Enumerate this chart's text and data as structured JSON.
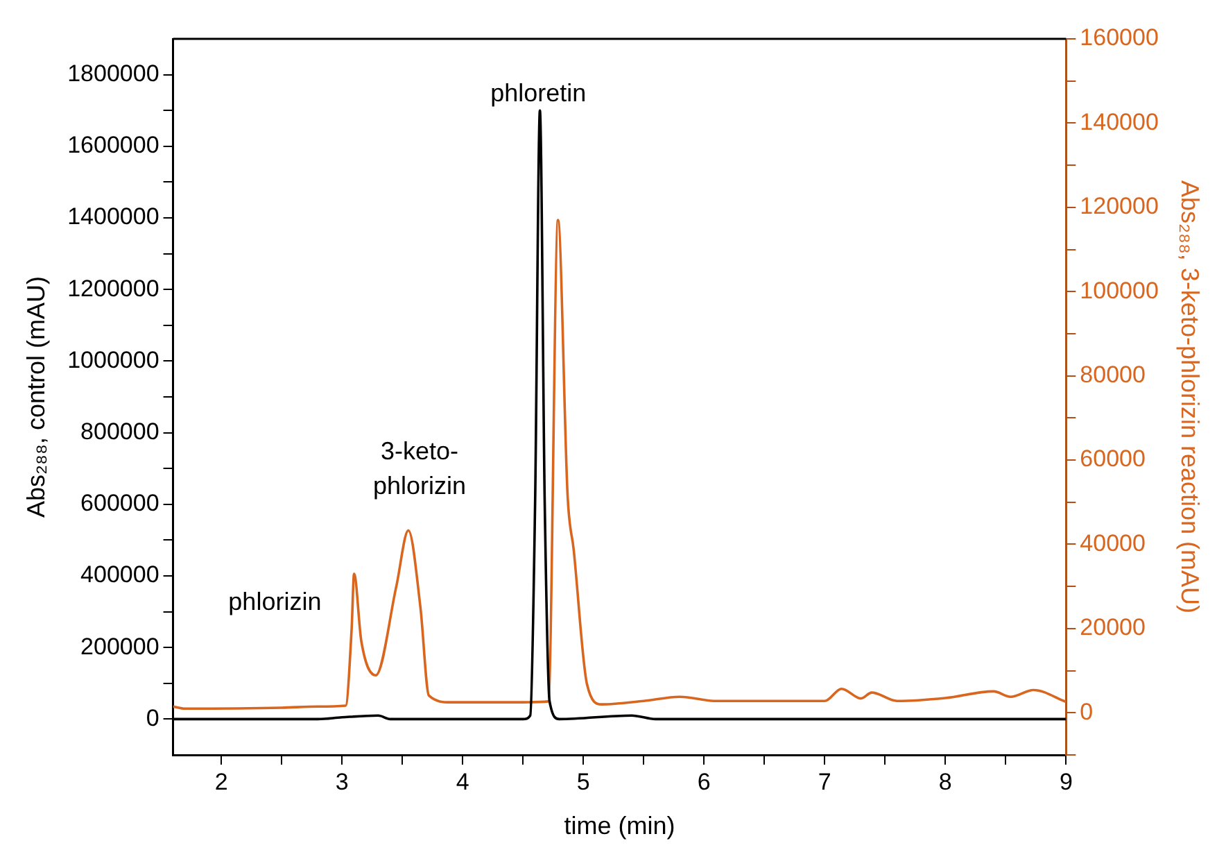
{
  "chart_data": {
    "type": "line",
    "xlabel": "time (min)",
    "ylabel": "Abs₂₈₈, control (mAU)",
    "y2label": "Abs₂₈₈, 3-keto-phlorizin reaction (mAU)",
    "xlim": [
      1.6,
      9
    ],
    "xticks": [
      2,
      {
        "value": 2.5,
        "label": null
      },
      3,
      {
        "value": 3.5,
        "label": null
      },
      4,
      {
        "value": 4.5,
        "label": null
      },
      5,
      {
        "value": 5.5,
        "label": null
      },
      6,
      {
        "value": 6.5,
        "label": null
      },
      7,
      {
        "value": 7.5,
        "label": null
      },
      8,
      {
        "value": 8.5,
        "label": null
      },
      9
    ],
    "ylim": [
      -100000,
      1900000
    ],
    "yticks": [
      0,
      {
        "value": 100000,
        "label": null
      },
      200000,
      {
        "value": 300000,
        "label": null
      },
      400000,
      {
        "value": 500000,
        "label": null
      },
      600000,
      {
        "value": 700000,
        "label": null
      },
      800000,
      {
        "value": 900000,
        "label": null
      },
      1000000,
      {
        "value": 1100000,
        "label": null
      },
      1200000,
      {
        "value": 1300000,
        "label": null
      },
      1400000,
      {
        "value": 1500000,
        "label": null
      },
      1600000,
      {
        "value": 1700000,
        "label": null
      },
      1800000
    ],
    "y2lim": [
      -10000,
      160000
    ],
    "y2ticks": [
      {
        "value": -10000,
        "label": null
      },
      0,
      {
        "value": 10000,
        "label": null
      },
      20000,
      {
        "value": 30000,
        "label": null
      },
      40000,
      {
        "value": 50000,
        "label": null
      },
      60000,
      {
        "value": 70000,
        "label": null
      },
      80000,
      {
        "value": 90000,
        "label": null
      },
      100000,
      {
        "value": 110000,
        "label": null
      },
      120000,
      {
        "value": 130000,
        "label": null
      },
      140000,
      {
        "value": 150000,
        "label": null
      },
      160000
    ],
    "grid": false,
    "legend": false,
    "marker": "none",
    "line_style": "solid",
    "series": [
      {
        "color": "#000000",
        "x": [
          1.6,
          2.8,
          3.0,
          3.3,
          3.4,
          4.5,
          4.56,
          4.6,
          4.64,
          4.68,
          4.72,
          4.8,
          5.4,
          5.6,
          9
        ],
        "values": [
          0,
          0,
          5000,
          10000,
          0,
          0,
          10000,
          600000,
          1700000,
          600000,
          50000,
          0,
          10000,
          0,
          0
        ]
      },
      {
        "color": "#d9661f",
        "axis": "y2",
        "x": [
          1.6,
          1.7,
          2.5,
          2.8,
          3.03,
          3.08,
          3.1,
          3.16,
          3.28,
          3.45,
          3.55,
          3.65,
          3.72,
          3.9,
          4.5,
          4.71,
          4.79,
          4.87,
          4.92,
          5.03,
          5.15,
          5.5,
          5.8,
          6.1,
          7.0,
          7.14,
          7.3,
          7.39,
          7.6,
          8.0,
          8.4,
          8.54,
          8.73,
          9.0
        ],
        "values": [
          1500,
          1000,
          1200,
          1500,
          1700,
          20000,
          33000,
          17000,
          8900,
          30000,
          43300,
          25000,
          4100,
          2500,
          2500,
          2700,
          117000,
          51300,
          38700,
          6800,
          2000,
          2800,
          3800,
          2800,
          2800,
          5700,
          3400,
          4800,
          2800,
          3500,
          5100,
          3800,
          5400,
          2600
        ]
      }
    ],
    "annotations": [
      "phlorizin",
      "3-keto-\nphlorizin",
      "phloretin"
    ]
  }
}
